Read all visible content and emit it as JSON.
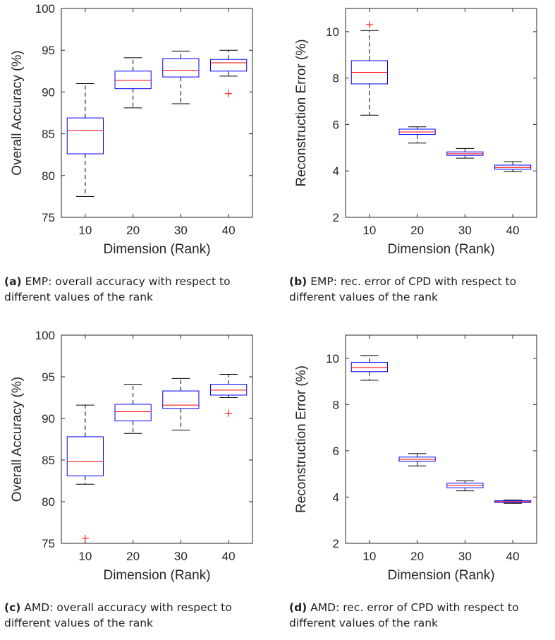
{
  "colors": {
    "box": "#0000ff",
    "median": "#ff0000",
    "whisker": "#000000",
    "outlier": "#ff0000",
    "axes": "#262626"
  },
  "captions": [
    {
      "tag": "(a)",
      "text": "EMP: overall accuracy with respect to different values of the rank"
    },
    {
      "tag": "(b)",
      "text": "EMP: rec. error of CPD with respect to different values of the rank"
    },
    {
      "tag": "(c)",
      "text": "AMD: overall accuracy with respect to different values of the rank"
    },
    {
      "tag": "(d)",
      "text": "AMD: rec. error of CPD with respect to different values of the rank"
    }
  ],
  "chart_data": [
    {
      "type": "box",
      "xlabel": "Dimension (Rank)",
      "ylabel": "Overall Accuracy (%)",
      "ylim": [
        75,
        100
      ],
      "yticks": [
        75,
        80,
        85,
        90,
        95,
        100
      ],
      "categories": [
        "10",
        "20",
        "30",
        "40"
      ],
      "boxes": [
        {
          "whisker_low": 77.5,
          "q1": 82.6,
          "median": 85.4,
          "q3": 86.9,
          "whisker_high": 91.0,
          "outliers": []
        },
        {
          "whisker_low": 88.1,
          "q1": 90.4,
          "median": 91.4,
          "q3": 92.5,
          "whisker_high": 94.1,
          "outliers": []
        },
        {
          "whisker_low": 88.6,
          "q1": 91.8,
          "median": 92.6,
          "q3": 94.0,
          "whisker_high": 94.9,
          "outliers": []
        },
        {
          "whisker_low": 91.9,
          "q1": 92.5,
          "median": 93.5,
          "q3": 93.9,
          "whisker_high": 95.0,
          "outliers": [
            89.8
          ]
        }
      ]
    },
    {
      "type": "box",
      "xlabel": "Dimension (Rank)",
      "ylabel": "Reconstruction Error (%)",
      "ylim": [
        2,
        11
      ],
      "yticks": [
        2,
        4,
        6,
        8,
        10
      ],
      "categories": [
        "10",
        "20",
        "30",
        "40"
      ],
      "boxes": [
        {
          "whisker_low": 6.4,
          "q1": 7.75,
          "median": 8.25,
          "q3": 8.75,
          "whisker_high": 10.05,
          "outliers": [
            10.3
          ]
        },
        {
          "whisker_low": 5.2,
          "q1": 5.57,
          "median": 5.68,
          "q3": 5.8,
          "whisker_high": 5.9,
          "outliers": []
        },
        {
          "whisker_low": 4.55,
          "q1": 4.67,
          "median": 4.74,
          "q3": 4.82,
          "whisker_high": 4.97,
          "outliers": []
        },
        {
          "whisker_low": 3.97,
          "q1": 4.07,
          "median": 4.15,
          "q3": 4.25,
          "whisker_high": 4.4,
          "outliers": []
        }
      ]
    },
    {
      "type": "box",
      "xlabel": "Dimension (Rank)",
      "ylabel": "Overall Accuracy (%)",
      "ylim": [
        75,
        100
      ],
      "yticks": [
        75,
        80,
        85,
        90,
        95,
        100
      ],
      "categories": [
        "10",
        "20",
        "30",
        "40"
      ],
      "boxes": [
        {
          "whisker_low": 82.1,
          "q1": 83.1,
          "median": 84.8,
          "q3": 87.8,
          "whisker_high": 91.6,
          "outliers": [
            75.6
          ]
        },
        {
          "whisker_low": 88.2,
          "q1": 89.7,
          "median": 90.8,
          "q3": 91.7,
          "whisker_high": 94.1,
          "outliers": []
        },
        {
          "whisker_low": 88.6,
          "q1": 91.2,
          "median": 91.6,
          "q3": 93.3,
          "whisker_high": 94.8,
          "outliers": []
        },
        {
          "whisker_low": 92.5,
          "q1": 92.8,
          "median": 93.4,
          "q3": 94.1,
          "whisker_high": 95.3,
          "outliers": [
            90.6
          ]
        }
      ]
    },
    {
      "type": "box",
      "xlabel": "Dimension (Rank)",
      "ylabel": "Reconstruction Error (%)",
      "ylim": [
        2,
        11
      ],
      "yticks": [
        2,
        4,
        6,
        8,
        10
      ],
      "categories": [
        "10",
        "20",
        "30",
        "40"
      ],
      "boxes": [
        {
          "whisker_low": 9.05,
          "q1": 9.42,
          "median": 9.6,
          "q3": 9.82,
          "whisker_high": 10.12,
          "outliers": []
        },
        {
          "whisker_low": 5.35,
          "q1": 5.55,
          "median": 5.63,
          "q3": 5.73,
          "whisker_high": 5.88,
          "outliers": []
        },
        {
          "whisker_low": 4.27,
          "q1": 4.4,
          "median": 4.5,
          "q3": 4.6,
          "whisker_high": 4.7,
          "outliers": []
        },
        {
          "whisker_low": 3.73,
          "q1": 3.77,
          "median": 3.8,
          "q3": 3.84,
          "whisker_high": 3.87,
          "outliers": []
        }
      ]
    }
  ]
}
